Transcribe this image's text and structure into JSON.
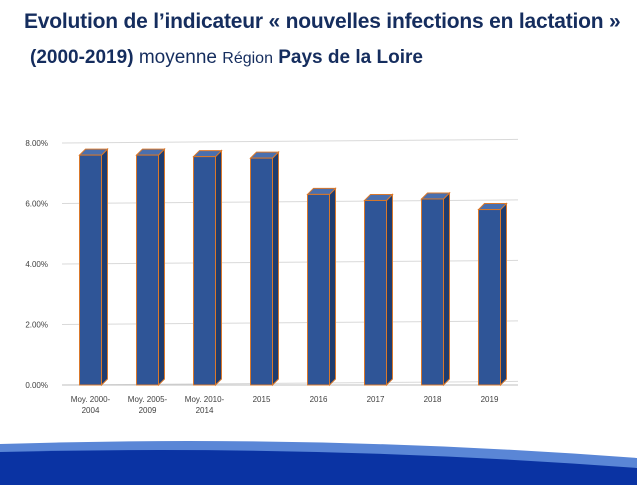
{
  "title": {
    "line1": "Evolution de l’indicateur « nouvelles infections en lactation »",
    "line2_years": "(2000-2019)",
    "line2_moyenne": "moyenne",
    "line2_region": "Région",
    "line2_place": "Pays de la Loire"
  },
  "colors": {
    "title": "#152d5e",
    "bar_front": "#2f5597",
    "bar_side": "#1f3c6e",
    "bar_top": "#4a6fae",
    "bar_outline": "#d9782b",
    "band_light": "#5a86d6",
    "band_dark": "#0a33a3"
  },
  "chart_data": {
    "type": "bar",
    "categories": [
      [
        "Moy. 2000-",
        "2004"
      ],
      [
        "Moy. 2005-",
        "2009"
      ],
      [
        "Moy. 2010-",
        "2014"
      ],
      [
        "2015"
      ],
      [
        "2016"
      ],
      [
        "2017"
      ],
      [
        "2018"
      ],
      [
        "2019"
      ]
    ],
    "values": [
      7.6,
      7.6,
      7.55,
      7.5,
      6.3,
      6.1,
      6.15,
      5.8
    ],
    "unit": "%",
    "ylim": [
      0,
      8
    ],
    "yticks": [
      "0.00%",
      "2.00%",
      "4.00%",
      "6.00%",
      "8.00%"
    ],
    "grid": true,
    "legend": "none"
  }
}
